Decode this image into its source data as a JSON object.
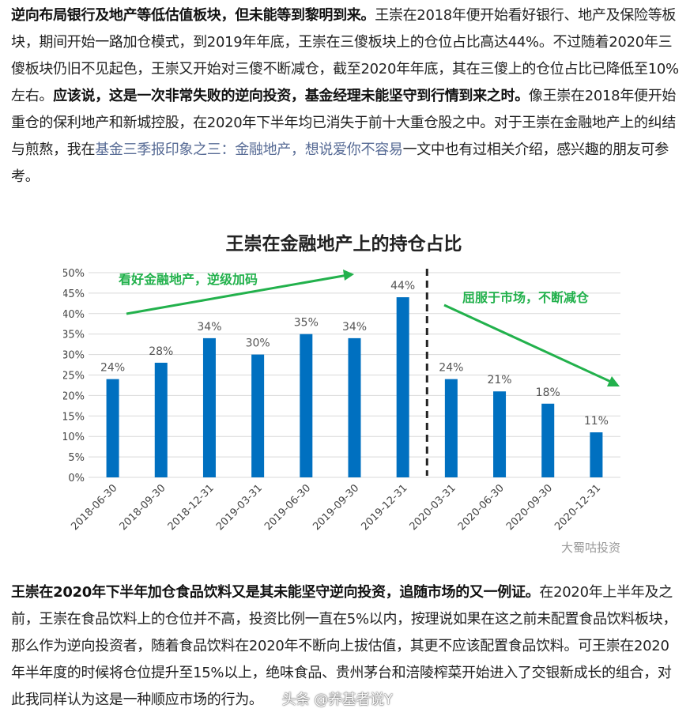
{
  "article": {
    "paragraph1": [
      {
        "text": "逆向布局银行及地产等低估值板块，但未能等到黎明到来。",
        "style": "bold"
      },
      {
        "text": "王崇在2018年便开始看好银行、地产及保险等板块，期间开始一路加仓模式，到2019年年底，王崇在三傻板块上的仓位占比高达44%。不过随着2020年三傻板块仍旧不见起色，王崇又开始对三傻不断减仓，截至2020年年底，其在三傻上的仓位占比已降低至10%左右。",
        "style": "normal"
      },
      {
        "text": "应该说，这是一次非常失败的逆向投资，基金经理未能坚守到行情到来之时。",
        "style": "bold"
      },
      {
        "text": "像王崇在2018年便开始重仓的保利地产和新城控股，在2020年下半年均已消失于前十大重仓股之中。对于王崇在金融地产上的纠结与煎熬，我在",
        "style": "normal"
      },
      {
        "text": "基金三季报印象之三：金融地产，想说爱你不容易",
        "style": "link"
      },
      {
        "text": "一文中也有过相关介绍，感兴趣的朋友可参考。",
        "style": "normal"
      }
    ],
    "paragraph2": [
      {
        "text": "王崇在2020年下半年加仓食品饮料又是其未能坚守逆向投资，追随市场的又一例证。",
        "style": "bold"
      },
      {
        "text": "在2020年上半年及之前，王崇在食品饮料上的仓位并不高，投资比例一直在5%以内，按理说如果在这之前未配置食品饮料板块，那么作为逆向投资者，随着食品饮料在2020年不断向上拔估值，其更不应该配置食品饮料。可王崇在2020年半年度的时候将仓位提升至15%以上，绝味食品、贵州茅台和涪陵榨菜开始进入了交银新成长的组合，对此我同样认为这是一种顺应市场的行为。",
        "style": "normal"
      }
    ],
    "watermark_bottom": "头条 @养基者说Y"
  },
  "chart_data": {
    "type": "bar",
    "title": "王崇在金融地产上的持仓占比",
    "categories": [
      "2018-06-30",
      "2018-09-30",
      "2018-12-31",
      "2019-03-31",
      "2019-06-30",
      "2019-09-30",
      "2019-12-31",
      "2020-03-31",
      "2020-06-30",
      "2020-09-30",
      "2020-12-31"
    ],
    "values": [
      24,
      28,
      34,
      30,
      35,
      34,
      44,
      24,
      21,
      18,
      11
    ],
    "value_unit": "%",
    "ylim": [
      0,
      50
    ],
    "yticks": [
      "0%",
      "5%",
      "10%",
      "15%",
      "20%",
      "25%",
      "30%",
      "35%",
      "40%",
      "45%",
      "50%"
    ],
    "grid": true,
    "bar_color": "#0070c0",
    "annotation_color": "#22b14c",
    "annotations": [
      {
        "text": "看好金融地产，逆级加码"
      },
      {
        "text": "屈服于市场，不断减仓"
      }
    ],
    "divider_after_category": "2019-12-31",
    "watermark": "大蜀咕投资"
  }
}
